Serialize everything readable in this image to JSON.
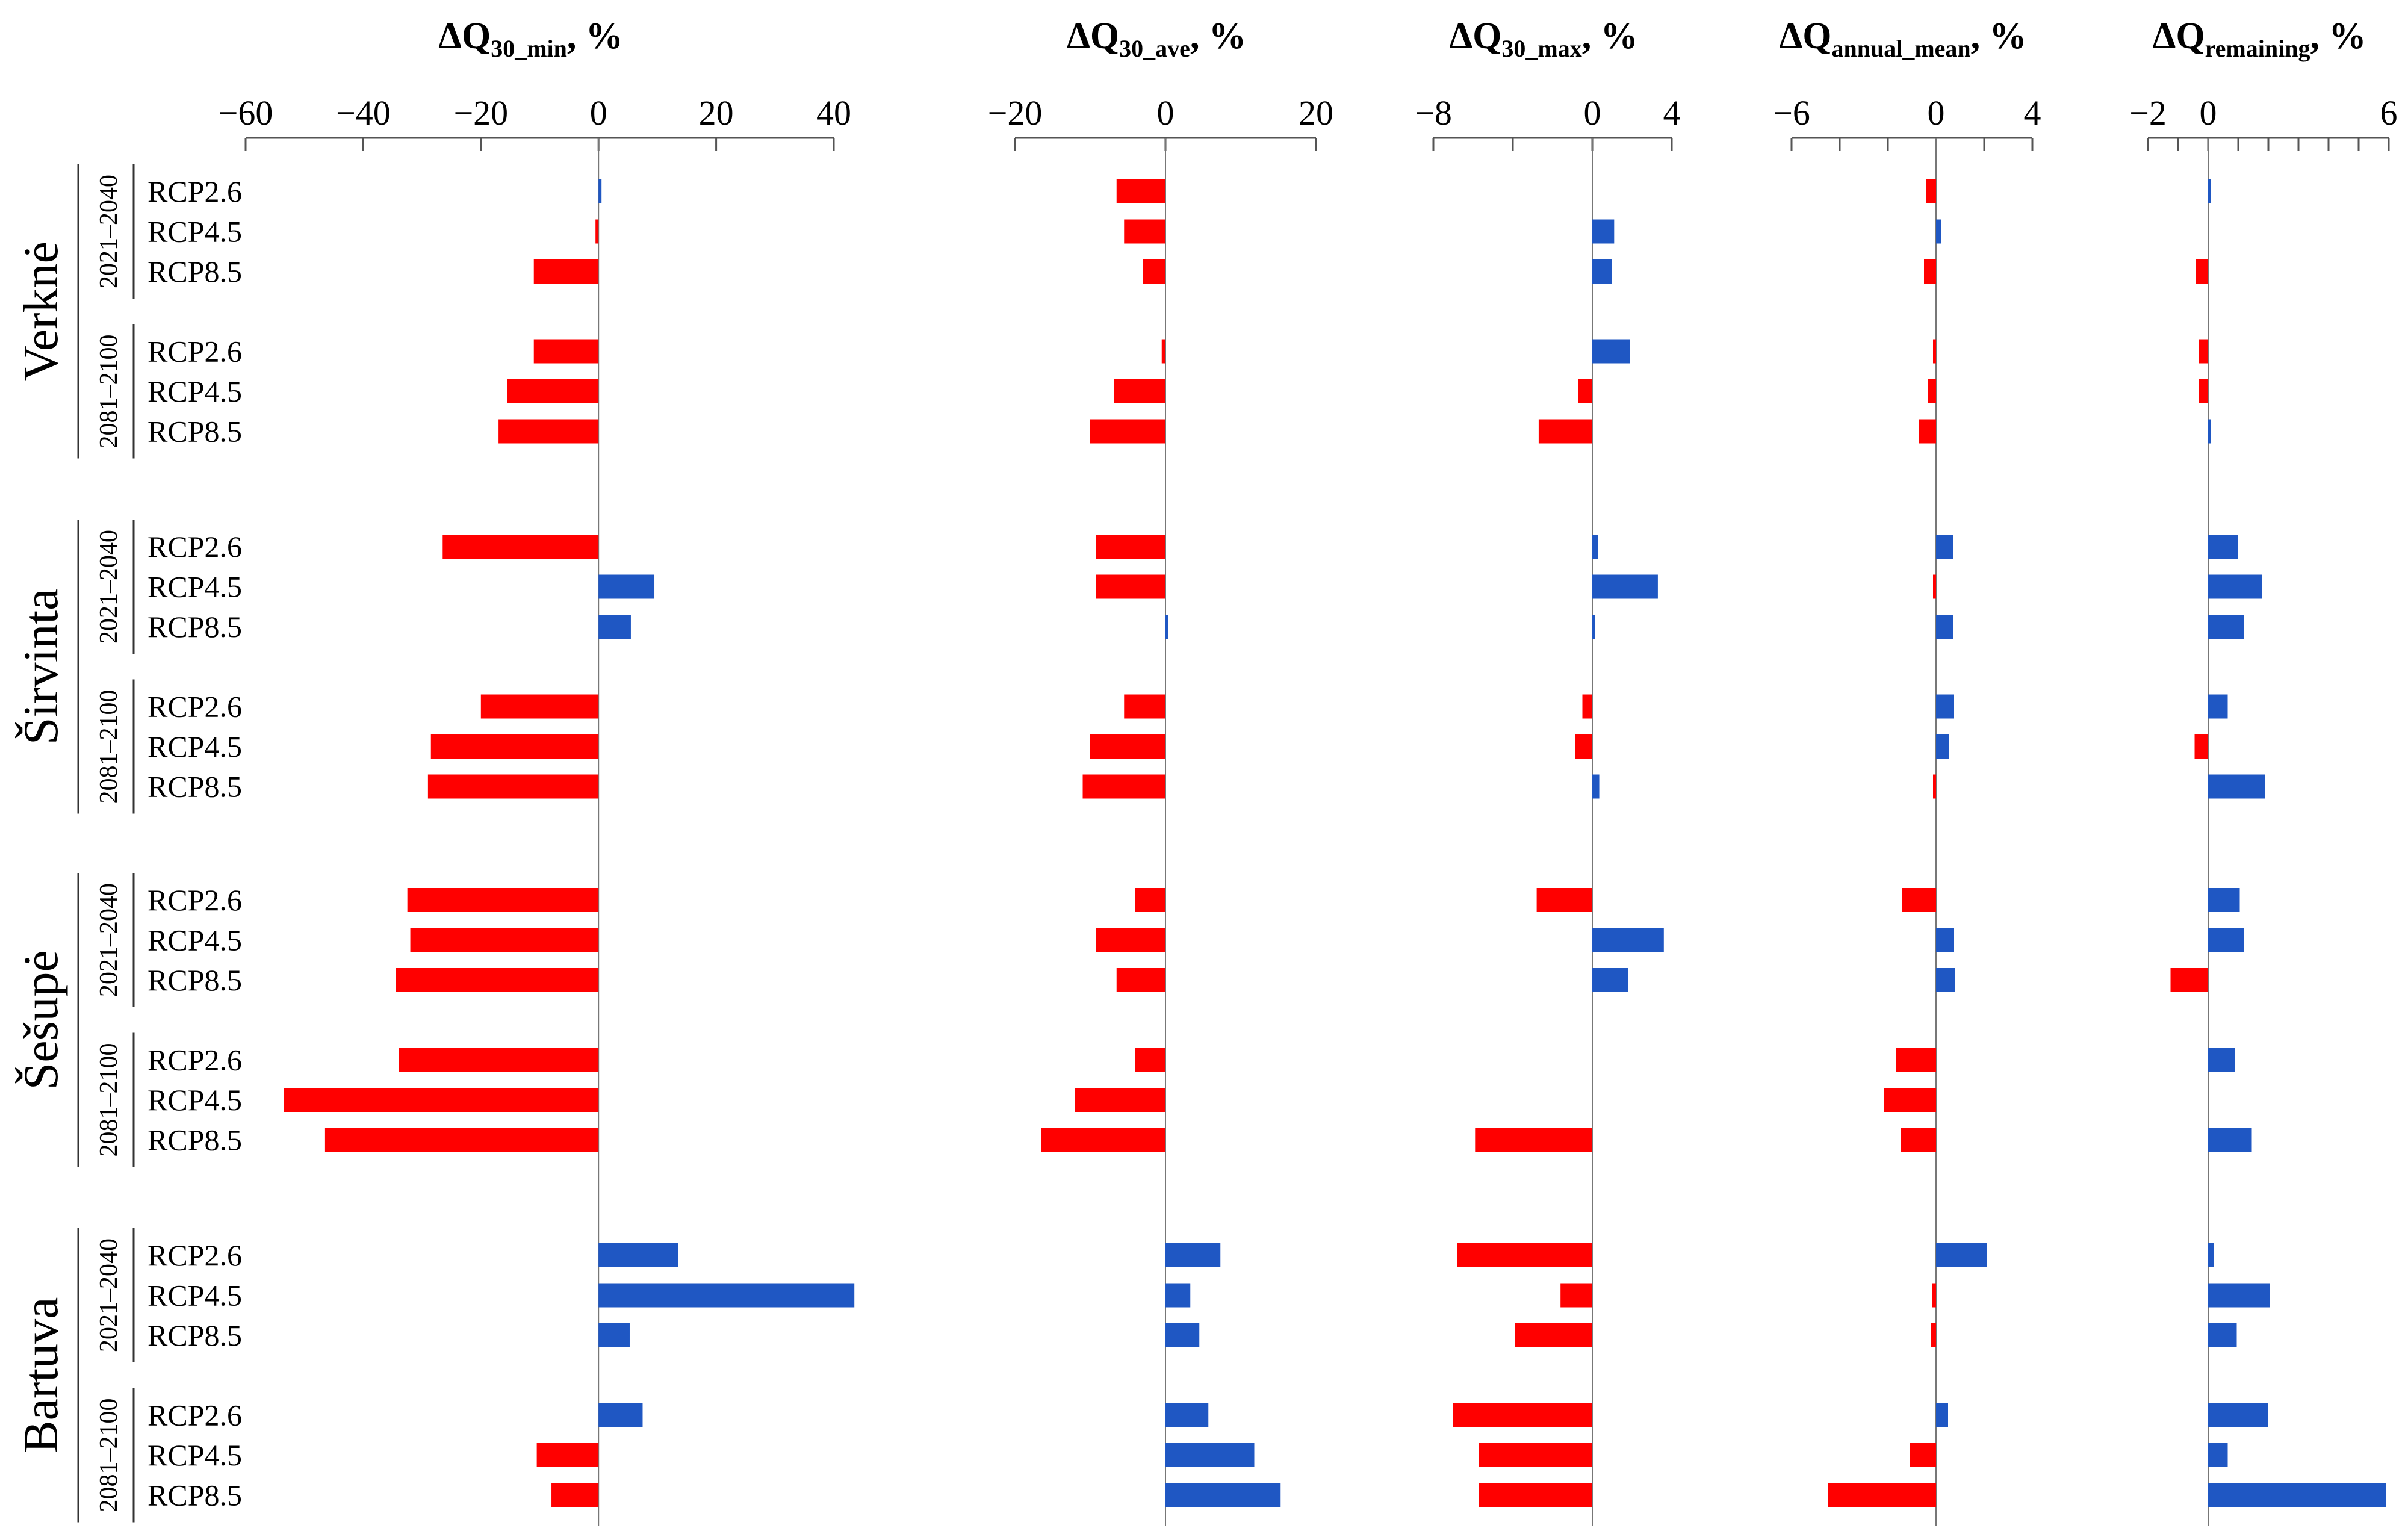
{
  "chart_data": {
    "type": "bar",
    "orientation": "horizontal",
    "colors": {
      "positive": "#1f57c3",
      "negative": "#ff0000",
      "axis": "#555555"
    },
    "rivers": [
      "Verknė",
      "Širvinta",
      "Šešupė",
      "Bartuva"
    ],
    "periods": [
      "2021–2040",
      "2081–2100"
    ],
    "scenarios": [
      "RCP2.6",
      "RCP4.5",
      "RCP8.5"
    ],
    "panels": [
      {
        "id": "q30min",
        "title_main": "ΔQ",
        "title_sub": "30_min",
        "title_tail": ", %",
        "xlim": [
          -60,
          40
        ],
        "ticks": [
          -60,
          -40,
          -20,
          0,
          20,
          40
        ],
        "tick_labels": [
          "−60",
          "−40",
          "−20",
          "0",
          "20",
          "40"
        ],
        "values": [
          0.5,
          -0.5,
          -11,
          -11,
          -15.5,
          -17,
          -26.5,
          9.5,
          5.5,
          -20,
          -28.5,
          -29,
          -32.5,
          -32,
          -34.5,
          -34,
          -53.5,
          -46.5,
          13.5,
          43.5,
          5.3,
          7.5,
          -10.5,
          -8
        ]
      },
      {
        "id": "q30ave",
        "title_main": "ΔQ",
        "title_sub": "30_ave",
        "title_tail": ", %",
        "xlim": [
          -20,
          20
        ],
        "ticks": [
          -20,
          0,
          20
        ],
        "tick_labels": [
          "−20",
          "0",
          "20"
        ],
        "values": [
          -6.5,
          -5.5,
          -3,
          -0.5,
          -6.8,
          -10,
          -9.2,
          -9.2,
          0.3,
          -5.5,
          -10,
          -11,
          -4,
          -9.2,
          -6.5,
          -4,
          -12,
          -16.5,
          7.3,
          3.3,
          4.5,
          5.7,
          11.8,
          15.3
        ]
      },
      {
        "id": "q30max",
        "title_main": "ΔQ",
        "title_sub": "30_max",
        "title_tail": ", %",
        "xlim": [
          -8,
          4
        ],
        "ticks": [
          -8,
          -4,
          0,
          4
        ],
        "tick_labels": [
          "−8",
          "",
          "0",
          "4"
        ],
        "values": [
          0,
          1.1,
          1.0,
          1.9,
          -0.7,
          -2.7,
          0.3,
          3.3,
          0.15,
          -0.5,
          -0.85,
          0.35,
          -2.8,
          3.6,
          1.8,
          0,
          0,
          -5.9,
          -6.8,
          -1.6,
          -3.9,
          -7.0,
          -5.7,
          -5.7
        ]
      },
      {
        "id": "qannual",
        "title_main": "ΔQ",
        "title_sub": "annual_mean",
        "title_tail": ", %",
        "xlim": [
          -6,
          4
        ],
        "ticks": [
          -6,
          -4,
          -2,
          0,
          2,
          4
        ],
        "tick_labels": [
          "−6",
          "",
          "",
          "0",
          "",
          "4"
        ],
        "values": [
          -0.4,
          0.2,
          -0.5,
          -0.05,
          -0.35,
          -0.7,
          0.7,
          -0.1,
          0.7,
          0.75,
          0.55,
          -0.05,
          -1.4,
          0.75,
          0.8,
          -1.65,
          -2.15,
          -1.45,
          2.1,
          -0.15,
          -0.2,
          0.5,
          -1.1,
          -4.5
        ]
      },
      {
        "id": "qremaining",
        "title_main": "ΔQ",
        "title_sub": "remaining",
        "title_tail": ", %",
        "xlim": [
          -2,
          6
        ],
        "ticks": [
          -2,
          -1,
          0,
          1,
          2,
          3,
          4,
          5,
          6
        ],
        "tick_labels": [
          "−2",
          "",
          "0",
          "",
          "",
          "",
          "",
          "",
          "6"
        ],
        "values": [
          0.1,
          0,
          -0.4,
          -0.3,
          -0.3,
          0.05,
          1.0,
          1.8,
          1.2,
          0.65,
          -0.45,
          1.9,
          1.05,
          1.2,
          -1.25,
          0.9,
          0,
          1.45,
          0.2,
          2.05,
          0.95,
          2.0,
          0.65,
          5.9
        ]
      }
    ]
  }
}
